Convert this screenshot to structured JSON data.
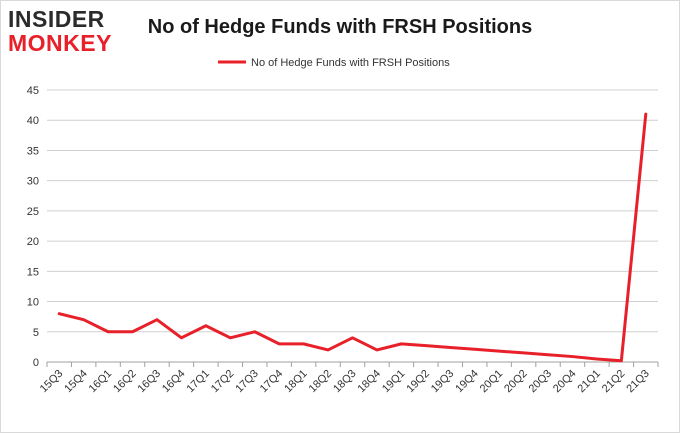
{
  "logo": {
    "line1": "INSIDER",
    "line2": "MONKEY"
  },
  "colors": {
    "series": "#e8202a",
    "grid": "#d0d0d0",
    "axis": "#a0a0a0",
    "text": "#333333"
  },
  "chart_data": {
    "type": "line",
    "title": "No of Hedge Funds with FRSH Positions",
    "xlabel": "",
    "ylabel": "",
    "ylim": [
      0,
      45
    ],
    "yticks": [
      0,
      5,
      10,
      15,
      20,
      25,
      30,
      35,
      40,
      45
    ],
    "grid": true,
    "legend": "top-center",
    "categories": [
      "15Q3",
      "15Q4",
      "16Q1",
      "16Q2",
      "16Q3",
      "16Q4",
      "17Q1",
      "17Q2",
      "17Q3",
      "17Q4",
      "18Q1",
      "18Q2",
      "18Q3",
      "18Q4",
      "19Q1",
      "19Q2",
      "19Q3",
      "19Q4",
      "20Q1",
      "20Q2",
      "20Q3",
      "20Q4",
      "21Q1",
      "21Q2",
      "21Q3"
    ],
    "series": [
      {
        "name": "No of Hedge Funds with FRSH Positions",
        "values": [
          8,
          7,
          5,
          5,
          7,
          4,
          6,
          4,
          5,
          3,
          3,
          2,
          4,
          2,
          3,
          2.7,
          2.4,
          2.1,
          1.8,
          1.5,
          1.2,
          0.9,
          0.5,
          0.2,
          41
        ]
      }
    ]
  }
}
